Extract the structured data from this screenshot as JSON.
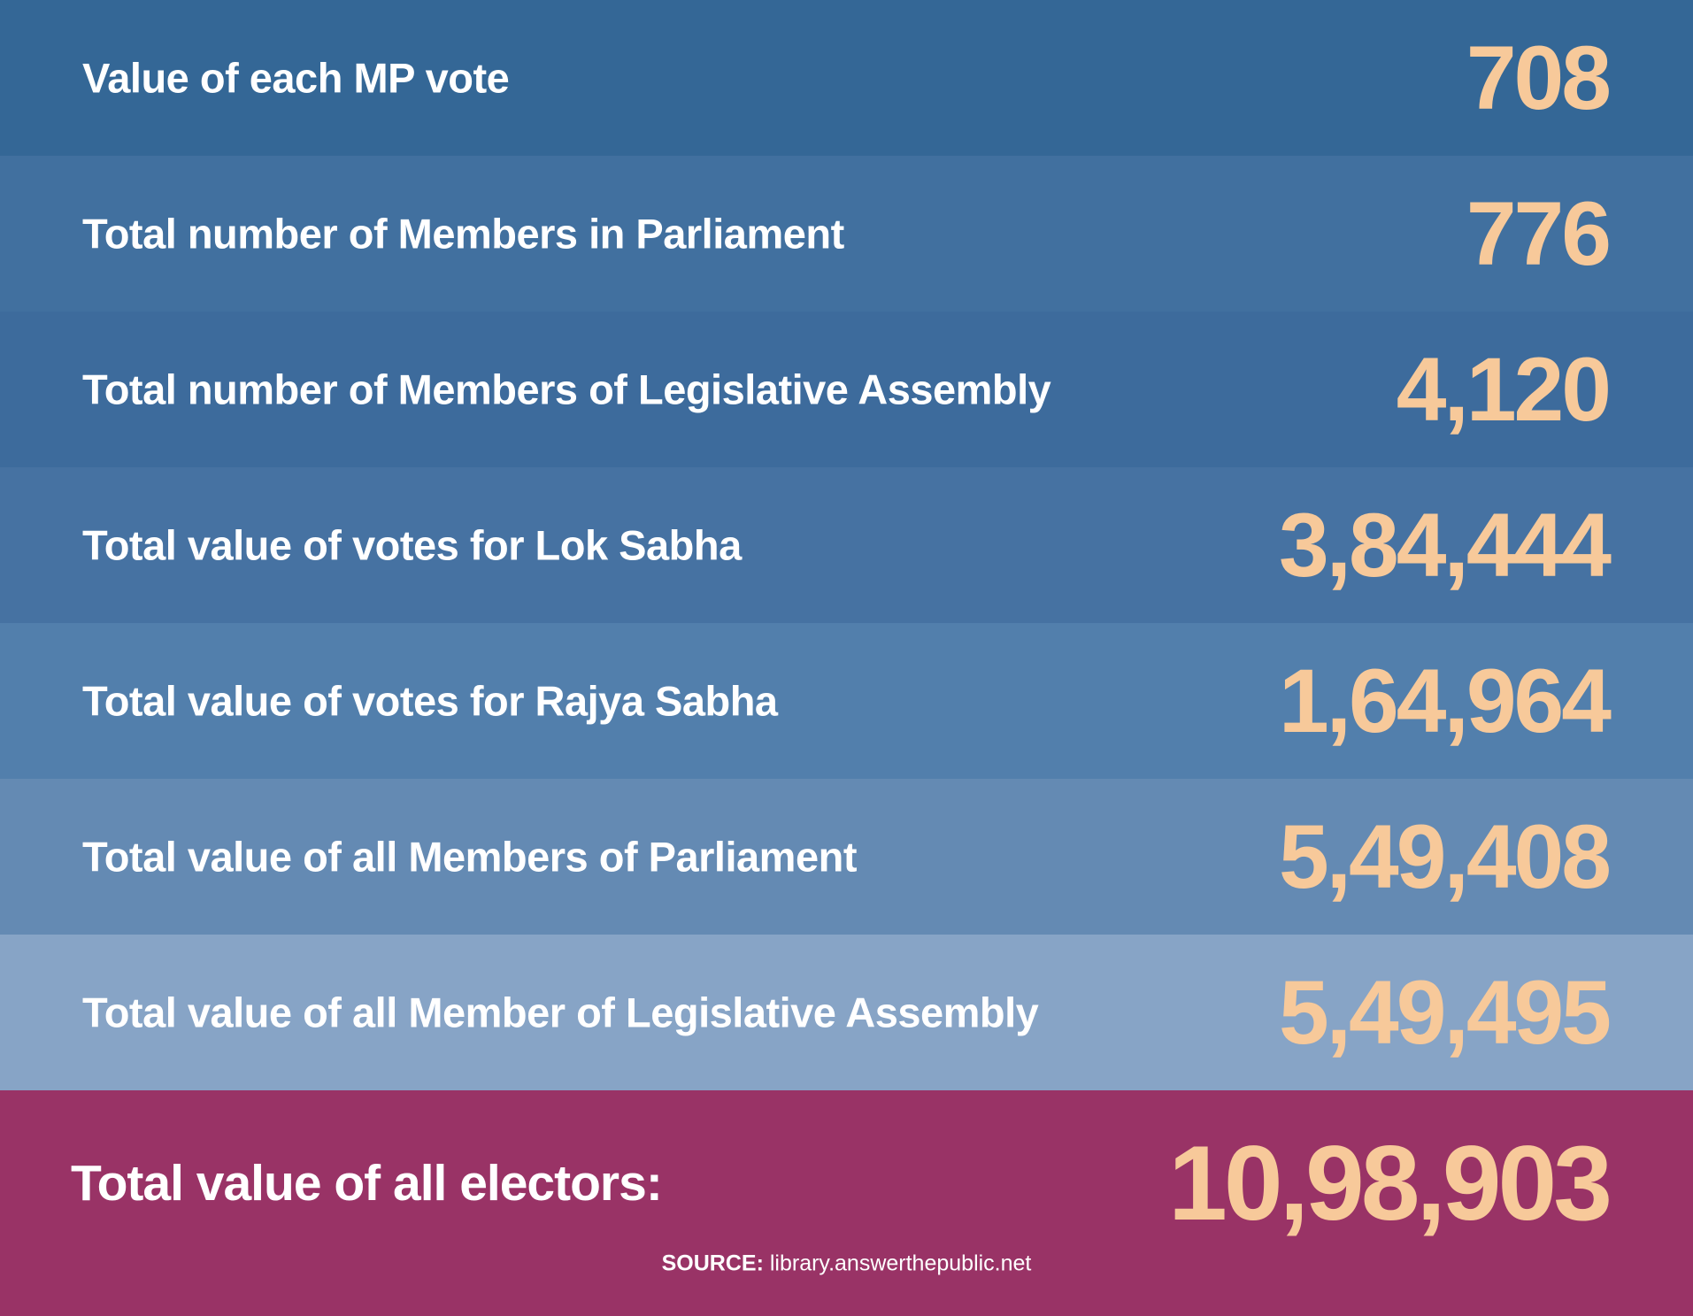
{
  "rows": [
    {
      "label": "Value of each MP vote",
      "value": "708",
      "color": "#346796"
    },
    {
      "label": "Total number of Members in Parliament",
      "value": "776",
      "color": "#41709f"
    },
    {
      "label": "Total number of Members of Legislative Assembly",
      "value": "4,120",
      "color": "#3d6b9c"
    },
    {
      "label": "Total value of votes for Lok Sabha",
      "value": "3,84,444",
      "color": "#4672a2"
    },
    {
      "label": "Total value of votes for Rajya Sabha",
      "value": "1,64,964",
      "color": "#527fac"
    },
    {
      "label": "Total value of all Members of Parliament",
      "value": "5,49,408",
      "color": "#648ab3"
    },
    {
      "label": "Total value of all Member of Legislative Assembly",
      "value": "5,49,495",
      "color": "#87a4c6"
    }
  ],
  "total": {
    "label": "Total value of all electors:",
    "value": "10,98,903",
    "color": "#993366"
  },
  "source": {
    "key": "SOURCE:",
    "text": " library.answerthepublic.net"
  },
  "colors": {
    "value_text": "#f7c99a",
    "label_text": "#ffffff"
  }
}
